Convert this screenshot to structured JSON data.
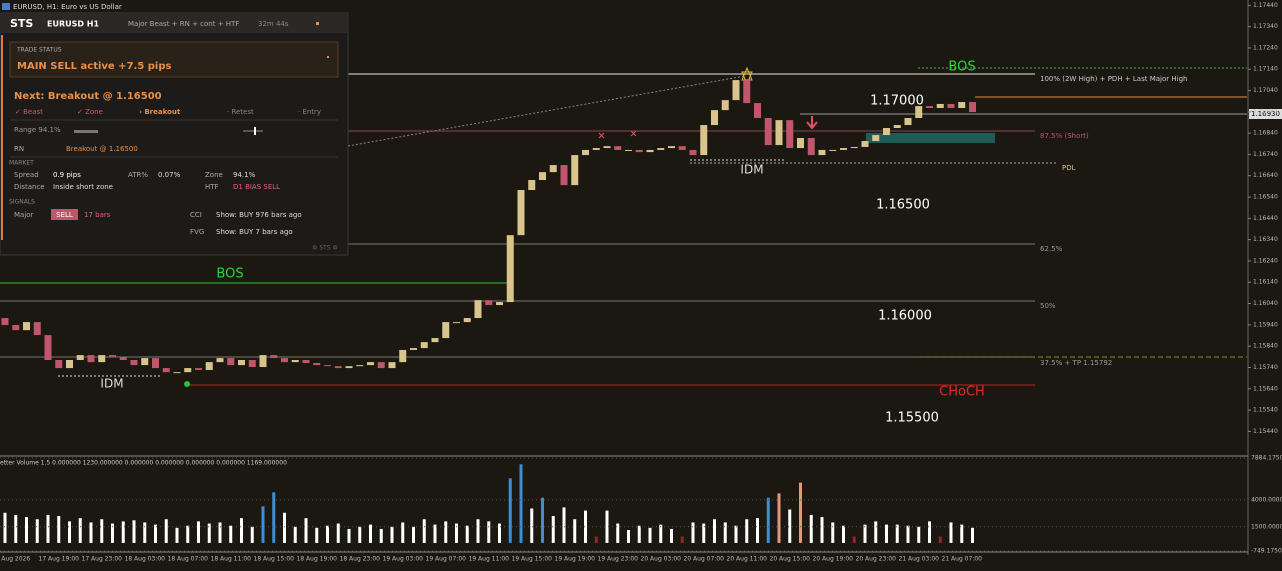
{
  "header": {
    "window_title": "EURUSD, H1: Euro vs US Dollar"
  },
  "panel": {
    "brand": "STS",
    "symbol": "EURUSD H1",
    "mode": "Major Beast + RN + cont + HTF",
    "timer": "32m 44s",
    "status_label": "TRADE STATUS",
    "status": "MAIN SELL active +7.5 pips",
    "next": "Next: Breakout @ 1.16500",
    "steps": [
      "✓ Beast",
      "✓ Zone",
      "› Breakout",
      "· Retest",
      "· Entry"
    ],
    "range": "Range 94.1%",
    "rn_label": "RN",
    "rn_value": "Breakout @ 1.16500",
    "market_label": "MARKET",
    "spread_label": "Spread",
    "spread": "0.9 pips",
    "atr_label": "ATR%",
    "atr": "0.07%",
    "zone_label": "Zone",
    "zone": "94.1%",
    "distance_label": "Distance",
    "distance": "Inside short zone",
    "htf_label": "HTF",
    "htf": "D1 BIAS SELL",
    "signals_label": "SIGNALS",
    "major_label": "Major",
    "major_badge": "SELL",
    "major_bars": "17 bars",
    "cci_label": "CCI",
    "cci": "Show: BUY 976 bars ago",
    "fvg_label": "FVG",
    "fvg": "Show: BUY 7 bars ago",
    "footer": "⚙ STS ⚙"
  },
  "annotations": {
    "bos_top": "BOS",
    "level_100": "100% (2W High) + PDH + Last Major High",
    "price_17000": "1.17000",
    "level_875": "87.5% (Short)",
    "pdl": "PDL",
    "idm_top": "IDM",
    "price_16500": "1.16500",
    "level_625": "62.5%",
    "bos_left": "BOS",
    "level_50": "50%",
    "price_16000": "1.16000",
    "level_375": "37.5% + TP 1.15792",
    "idm_left": "IDM",
    "choch": "CHoCH",
    "price_15500": "1.15500",
    "current_price": "1.16930"
  },
  "chart_data": [
    {
      "type": "candlestick",
      "up_color": "#d8c48c",
      "down_color": "#c0566b",
      "categories": [
        null,
        "Aug 2026",
        null,
        null,
        null,
        "17 Aug 19:00",
        null,
        null,
        null,
        "17 Aug 23:00",
        null,
        null,
        null,
        "18 Aug 03:00",
        null,
        null,
        null,
        "18 Aug 07:00",
        null,
        null,
        null,
        "18 Aug 11:00",
        null,
        null,
        null,
        "18 Aug 15:00",
        null,
        null,
        null,
        "18 Aug 19:00",
        null,
        null,
        null,
        "18 Aug 23:00",
        null,
        null,
        null,
        "19 Aug 03:00",
        null,
        null,
        null,
        "19 Aug 07:00",
        null,
        null,
        null,
        "19 Aug 11:00",
        null,
        null,
        null,
        "19 Aug 15:00",
        null,
        null,
        null,
        "19 Aug 19:00",
        null,
        null,
        null,
        "19 Aug 23:00",
        null,
        null,
        null,
        "20 Aug 03:00",
        null,
        null,
        null,
        "20 Aug 07:00",
        null,
        null,
        null,
        "20 Aug 11:00",
        null,
        null,
        null,
        "20 Aug 15:00",
        null,
        null,
        null,
        "20 Aug 19:00",
        null,
        null,
        null,
        "20 Aug 23:00",
        null,
        null,
        null,
        "21 Aug 03:00",
        null,
        null,
        null,
        "21 Aug 07:00",
        null
      ],
      "open": [
        1.15972,
        1.15939,
        1.15915,
        1.15953,
        1.15892,
        1.15775,
        1.15737,
        1.15775,
        1.15798,
        1.15765,
        1.15798,
        1.15789,
        1.15775,
        1.15751,
        1.15784,
        1.15737,
        1.15718,
        1.15718,
        1.15737,
        1.15728,
        1.15765,
        1.15784,
        1.15751,
        1.15775,
        1.15742,
        1.15798,
        1.15784,
        1.15765,
        1.15775,
        1.15761,
        1.15751,
        1.15746,
        1.15737,
        1.15746,
        1.15751,
        1.15765,
        1.15737,
        1.15765,
        1.15822,
        1.15831,
        1.15859,
        1.15878,
        1.15953,
        1.15953,
        1.15972,
        1.16056,
        1.16033,
        1.16047,
        1.16361,
        1.16573,
        1.1662,
        1.16657,
        1.1669,
        1.16596,
        1.16737,
        1.16761,
        1.1677,
        1.16779,
        1.16761,
        1.16761,
        1.16751,
        1.16761,
        1.1677,
        1.16779,
        1.16761,
        1.16737,
        1.16878,
        1.16948,
        1.16995,
        1.17089,
        1.16981,
        1.16911,
        1.16784,
        1.16901,
        1.1677,
        1.16817,
        1.16737,
        1.16761,
        1.16761,
        1.1677,
        1.16775,
        1.16803,
        1.16831,
        1.16864,
        1.16878,
        1.16911,
        1.16967,
        1.16958,
        1.16977,
        1.16958,
        1.16986
      ],
      "close": [
        1.15939,
        1.15915,
        1.15953,
        1.15892,
        1.15775,
        1.15737,
        1.15775,
        1.15798,
        1.15765,
        1.15798,
        1.15789,
        1.15775,
        1.15751,
        1.15784,
        1.15737,
        1.15718,
        1.15718,
        1.15737,
        1.15728,
        1.15765,
        1.15784,
        1.15751,
        1.15775,
        1.15742,
        1.15798,
        1.15784,
        1.15765,
        1.15775,
        1.15761,
        1.15751,
        1.15746,
        1.15737,
        1.15746,
        1.15751,
        1.15765,
        1.15737,
        1.15765,
        1.15822,
        1.15831,
        1.15859,
        1.15878,
        1.15953,
        1.15953,
        1.15972,
        1.16056,
        1.16033,
        1.16047,
        1.16361,
        1.16573,
        1.1662,
        1.16657,
        1.1669,
        1.16596,
        1.16737,
        1.16761,
        1.1677,
        1.16779,
        1.16761,
        1.16761,
        1.16751,
        1.16761,
        1.1677,
        1.16779,
        1.16761,
        1.16737,
        1.16878,
        1.16948,
        1.16995,
        1.17089,
        1.16981,
        1.16911,
        1.16784,
        1.16901,
        1.1677,
        1.16817,
        1.16737,
        1.16761,
        1.16761,
        1.1677,
        1.16775,
        1.16803,
        1.16831,
        1.16864,
        1.16878,
        1.16911,
        1.16967,
        1.16958,
        1.16977,
        1.16958,
        1.16986,
        1.16939
      ],
      "ylim": [
        1.15329,
        1.17465
      ],
      "yticks": [
        {
          "value": 1.1544,
          "label": "1.15440"
        },
        {
          "value": 1.1554,
          "label": "1.15540"
        },
        {
          "value": 1.1564,
          "label": "1.15640"
        },
        {
          "value": 1.1574,
          "label": "1.15740"
        },
        {
          "value": 1.1584,
          "label": "1.15840"
        },
        {
          "value": 1.1594,
          "label": "1.15940"
        },
        {
          "value": 1.1604,
          "label": "1.16040"
        },
        {
          "value": 1.1614,
          "label": "1.16140"
        },
        {
          "value": 1.1624,
          "label": "1.16240"
        },
        {
          "value": 1.1634,
          "label": "1.16340"
        },
        {
          "value": 1.1644,
          "label": "1.16440"
        },
        {
          "value": 1.1654,
          "label": "1.16540"
        },
        {
          "value": 1.1664,
          "label": "1.16640"
        },
        {
          "value": 1.1674,
          "label": "1.16740"
        },
        {
          "value": 1.1684,
          "label": "1.16840"
        },
        {
          "value": 1.1694,
          "label": "1.16940"
        },
        {
          "value": 1.1704,
          "label": "1.17040"
        },
        {
          "value": 1.1714,
          "label": "1.17140"
        },
        {
          "value": 1.1724,
          "label": "1.17240"
        },
        {
          "value": 1.1734,
          "label": "1.17340"
        },
        {
          "value": 1.1744,
          "label": "1.17440"
        }
      ]
    },
    {
      "type": "bar",
      "title": "etter Volume 1.5 0.000000 1230.000000 0.000000 0.000000 0.000000 0.000000 1169.000000",
      "values": [
        2800,
        2600,
        2400,
        2200,
        2600,
        2500,
        2000,
        2300,
        1900,
        2200,
        1800,
        2000,
        2100,
        1900,
        1700,
        2200,
        1400,
        1600,
        2000,
        1800,
        1900,
        1600,
        2300,
        1500,
        3400,
        4700,
        2800,
        1500,
        2300,
        1400,
        1600,
        1800,
        1300,
        1500,
        1700,
        1300,
        1500,
        1900,
        1500,
        2200,
        1700,
        2000,
        1800,
        1600,
        2200,
        2000,
        1800,
        6000,
        7300,
        3200,
        4200,
        2500,
        3300,
        2200,
        3000,
        600,
        3000,
        1800,
        1200,
        1600,
        1400,
        1700,
        1300,
        600,
        1900,
        1800,
        2200,
        1900,
        1600,
        2200,
        2300,
        4200,
        4600,
        3100,
        5600,
        2600,
        2400,
        1900,
        1600,
        600,
        1700,
        2000,
        1700,
        1700,
        1600,
        1500,
        2000,
        600,
        1900,
        1700,
        1400
      ],
      "colors": [
        "#ffffff",
        "#ffffff",
        "#ffffff",
        "#ffffff",
        "#ffffff",
        "#ffffff",
        "#ffffff",
        "#ffffff",
        "#ffffff",
        "#ffffff",
        "#ffffff",
        "#ffffff",
        "#ffffff",
        "#ffffff",
        "#ffffff",
        "#ffffff",
        "#ffffff",
        "#ffffff",
        "#ffffff",
        "#ffffff",
        "#ffffff",
        "#ffffff",
        "#ffffff",
        "#ffffff",
        "#3a8fd8",
        "#3a8fd8",
        "#ffffff",
        "#ffffff",
        "#ffffff",
        "#ffffff",
        "#ffffff",
        "#ffffff",
        "#ffffff",
        "#ffffff",
        "#ffffff",
        "#ffffff",
        "#ffffff",
        "#ffffff",
        "#ffffff",
        "#ffffff",
        "#ffffff",
        "#ffffff",
        "#ffffff",
        "#ffffff",
        "#ffffff",
        "#ffffff",
        "#ffffff",
        "#3a8fd8",
        "#3a8fd8",
        "#ffffff",
        "#3a8fd8",
        "#ffffff",
        "#ffffff",
        "#ffffff",
        "#ffffff",
        "#9b1f25",
        "#ffffff",
        "#ffffff",
        "#ffffff",
        "#ffffff",
        "#ffffff",
        "#ffffff",
        "#ffffff",
        "#9b1f25",
        "#ffffff",
        "#ffffff",
        "#ffffff",
        "#ffffff",
        "#ffffff",
        "#ffffff",
        "#ffffff",
        "#3a8fd8",
        "#e8957a",
        "#ffffff",
        "#e8957a",
        "#ffffff",
        "#ffffff",
        "#ffffff",
        "#ffffff",
        "#9b1f25",
        "#ffffff",
        "#ffffff",
        "#ffffff",
        "#ffffff",
        "#ffffff",
        "#ffffff",
        "#ffffff",
        "#9b1f25",
        "#ffffff",
        "#ffffff",
        "#ffffff"
      ],
      "ylim": [
        -749.175,
        7884.175
      ],
      "yticks": [
        {
          "value": -749.175,
          "label": "-749.17500"
        },
        {
          "value": 1500,
          "label": "1500.000000"
        },
        {
          "value": 4000,
          "label": "4000.000000"
        },
        {
          "value": 7884.175,
          "label": "7884.17500"
        }
      ]
    }
  ]
}
